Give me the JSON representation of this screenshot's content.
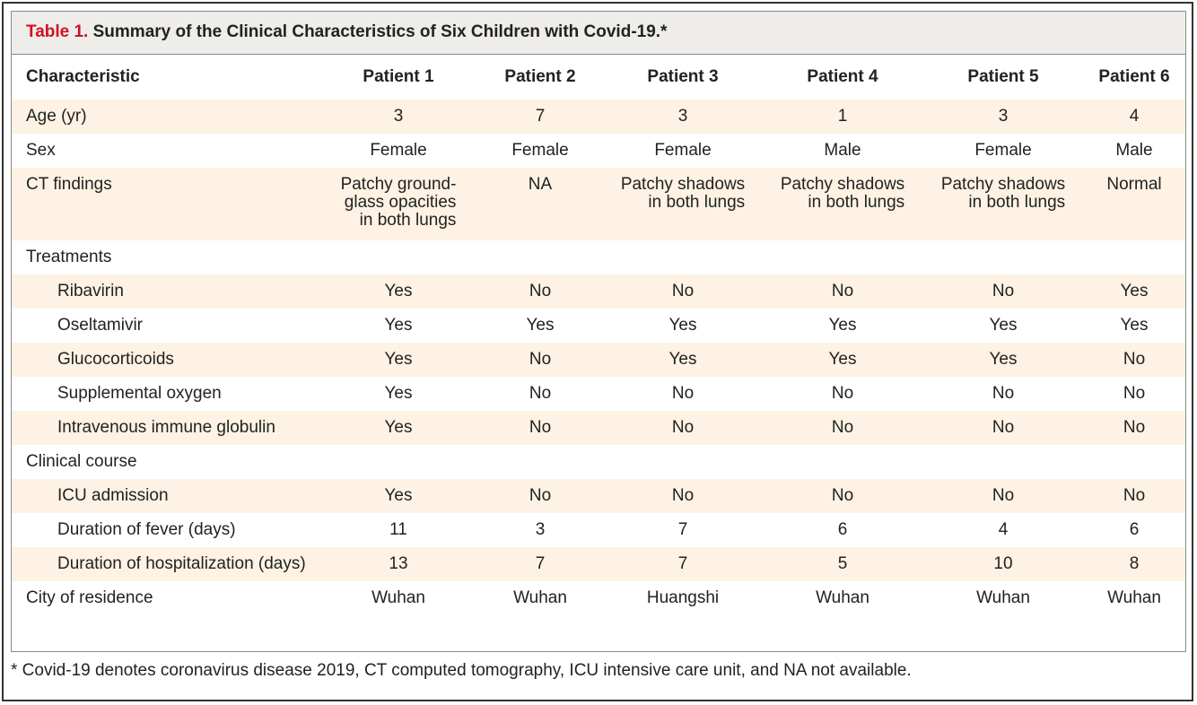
{
  "title": {
    "label": "Table 1.",
    "text": "Summary of the Clinical Characteristics of Six Children with Covid-19.*"
  },
  "table": {
    "columns": [
      "Characteristic",
      "Patient 1",
      "Patient 2",
      "Patient 3",
      "Patient 4",
      "Patient 5",
      "Patient 6"
    ],
    "body": [
      {
        "label": "Age (yr)",
        "values": [
          "3",
          "7",
          "3",
          "1",
          "3",
          "4"
        ]
      },
      {
        "label": "Sex",
        "values": [
          "Female",
          "Female",
          "Female",
          "Male",
          "Female",
          "Male"
        ]
      },
      {
        "label": "CT findings",
        "values": [
          [
            "Patchy ground-",
            "glass opacities",
            "in both lungs"
          ],
          [
            "NA"
          ],
          [
            "Patchy shadows",
            "in both lungs"
          ],
          [
            "Patchy shadows",
            "in both lungs"
          ],
          [
            "Patchy shadows",
            "in both lungs"
          ],
          [
            "Normal"
          ]
        ]
      },
      {
        "label": "Treatments",
        "rows": [
          {
            "label": "Ribavirin",
            "values": [
              "Yes",
              "No",
              "No",
              "No",
              "No",
              "Yes"
            ]
          },
          {
            "label": "Oseltamivir",
            "values": [
              "Yes",
              "Yes",
              "Yes",
              "Yes",
              "Yes",
              "Yes"
            ]
          },
          {
            "label": "Glucocorticoids",
            "values": [
              "Yes",
              "No",
              "Yes",
              "Yes",
              "Yes",
              "No"
            ]
          },
          {
            "label": "Supplemental oxygen",
            "values": [
              "Yes",
              "No",
              "No",
              "No",
              "No",
              "No"
            ]
          },
          {
            "label": "Intravenous immune globulin",
            "values": [
              "Yes",
              "No",
              "No",
              "No",
              "No",
              "No"
            ]
          }
        ]
      },
      {
        "label": "Clinical course",
        "rows": [
          {
            "label": "ICU admission",
            "values": [
              "Yes",
              "No",
              "No",
              "No",
              "No",
              "No"
            ]
          },
          {
            "label": "Duration of fever (days)",
            "values": [
              "11",
              "3",
              "7",
              "6",
              "4",
              "6"
            ]
          },
          {
            "label": "Duration of hospitalization (days)",
            "values": [
              "13",
              "7",
              "7",
              "5",
              "10",
              "8"
            ]
          }
        ]
      },
      {
        "label": "City of residence",
        "values": [
          "Wuhan",
          "Wuhan",
          "Huangshi",
          "Wuhan",
          "Wuhan",
          "Wuhan"
        ]
      }
    ]
  },
  "footnote": "* Covid-19 denotes coronavirus disease 2019, CT computed tomography, ICU intensive care unit, and NA not available."
}
